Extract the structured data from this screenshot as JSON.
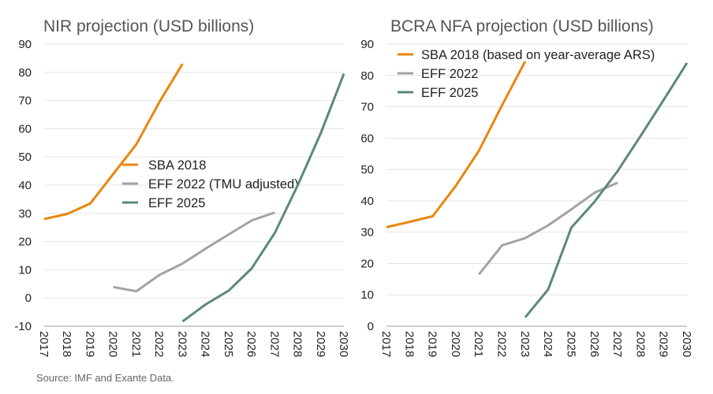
{
  "source": "Source: IMF and Exante Data.",
  "colors": {
    "SBA 2018": "#E8870E",
    "EFF 2022": "#A3A3A3",
    "EFF 2025": "#5B8A74"
  },
  "chart_data": [
    {
      "type": "line",
      "title": "NIR projection (USD billions)",
      "xlabel": "",
      "ylabel": "",
      "x": [
        2017,
        2018,
        2019,
        2020,
        2021,
        2022,
        2023,
        2024,
        2025,
        2026,
        2027,
        2028,
        2029,
        2030
      ],
      "ylim": [
        -10,
        90
      ],
      "yticks": [
        -10,
        0,
        10,
        20,
        30,
        40,
        50,
        60,
        70,
        80,
        90
      ],
      "grid": true,
      "legend_position": "center",
      "series": [
        {
          "name": "SBA 2018",
          "x": [
            2017,
            2018,
            2019,
            2020,
            2021,
            2022,
            2023
          ],
          "values": [
            28,
            29.8,
            33.5,
            44,
            54.5,
            69.5,
            83
          ]
        },
        {
          "name": "EFF 2022 (TMU adjusted)",
          "x": [
            2020,
            2021,
            2022,
            2023,
            2024,
            2025,
            2026,
            2027
          ],
          "values": [
            3.9,
            2.4,
            8.2,
            12.2,
            17.5,
            22.5,
            27.5,
            30.3
          ]
        },
        {
          "name": "EFF 2025",
          "x": [
            2023,
            2024,
            2025,
            2026,
            2027,
            2028,
            2029,
            2030
          ],
          "values": [
            -8.3,
            -2.3,
            2.6,
            10.5,
            23,
            40,
            58.5,
            79.5
          ]
        }
      ]
    },
    {
      "type": "line",
      "title": "BCRA NFA projection (USD billions)",
      "xlabel": "",
      "ylabel": "",
      "x": [
        2017,
        2018,
        2019,
        2020,
        2021,
        2022,
        2023,
        2024,
        2025,
        2026,
        2027,
        2028,
        2029,
        2030
      ],
      "ylim": [
        0,
        90
      ],
      "yticks": [
        0,
        10,
        20,
        30,
        40,
        50,
        60,
        70,
        80,
        90
      ],
      "grid": true,
      "legend_position": "top-left",
      "series": [
        {
          "name": "SBA 2018 (based on year-average ARS)",
          "x": [
            2017,
            2018,
            2019,
            2020,
            2021,
            2022,
            2023
          ],
          "values": [
            31.6,
            33.3,
            35.1,
            44.8,
            56,
            70.5,
            84.5
          ]
        },
        {
          "name": "EFF 2022",
          "x": [
            2021,
            2022,
            2023,
            2024,
            2025,
            2026,
            2027
          ],
          "values": [
            16.5,
            25.8,
            28.1,
            32.2,
            37.3,
            42.6,
            45.8
          ]
        },
        {
          "name": "EFF 2025",
          "x": [
            2023,
            2024,
            2025,
            2026,
            2027,
            2028,
            2029,
            2030
          ],
          "values": [
            2.8,
            11.8,
            31.5,
            39.7,
            49.5,
            60.8,
            72.3,
            84
          ]
        }
      ]
    }
  ]
}
